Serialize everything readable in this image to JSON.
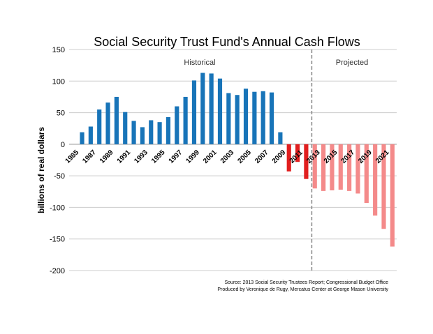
{
  "chart_data": {
    "type": "bar",
    "title": "Social Security Trust Fund's Annual Cash Flows",
    "ylabel": "billions of real dollars",
    "xlabel": "",
    "ylim": [
      -200,
      150
    ],
    "yticks": [
      150,
      100,
      50,
      0,
      -50,
      -100,
      -150,
      -200
    ],
    "grid": true,
    "region_labels": {
      "historical": "Historical",
      "projected": "Projected"
    },
    "projection_divider_after": 2012,
    "categories": [
      1985,
      1986,
      1987,
      1988,
      1989,
      1990,
      1991,
      1992,
      1993,
      1994,
      1995,
      1996,
      1997,
      1998,
      1999,
      2000,
      2001,
      2002,
      2003,
      2004,
      2005,
      2006,
      2007,
      2008,
      2009,
      2010,
      2011,
      2012,
      2013,
      2014,
      2015,
      2016,
      2017,
      2018,
      2019,
      2020,
      2021,
      2022
    ],
    "x_tick_labels": [
      "1985",
      "1987",
      "1989",
      "1991",
      "1993",
      "1995",
      "1997",
      "1999",
      "2001",
      "2003",
      "2005",
      "2007",
      "2009",
      "2011",
      "2013",
      "2015",
      "2017",
      "2019",
      "2021"
    ],
    "values": [
      0,
      19,
      28,
      55,
      66,
      75,
      51,
      37,
      27,
      38,
      35,
      43,
      60,
      75,
      101,
      113,
      112,
      104,
      81,
      78,
      88,
      83,
      84,
      82,
      19,
      -43,
      -28,
      -55,
      -70,
      -74,
      -73,
      -72,
      -74,
      -78,
      -93,
      -113,
      -134,
      -162
    ],
    "colors": {
      "historical": "#1874b8",
      "recent_deficit": "#e11e1e",
      "projected": "#f48a8a",
      "divider": "#888888",
      "grid": "#cccccc"
    },
    "source_lines": [
      "Source: 2013 Social Security Trustees Report; Congressional Budget Office",
      "Produced by Veronique de Rugy, Mercatus Center at George Mason University"
    ]
  }
}
